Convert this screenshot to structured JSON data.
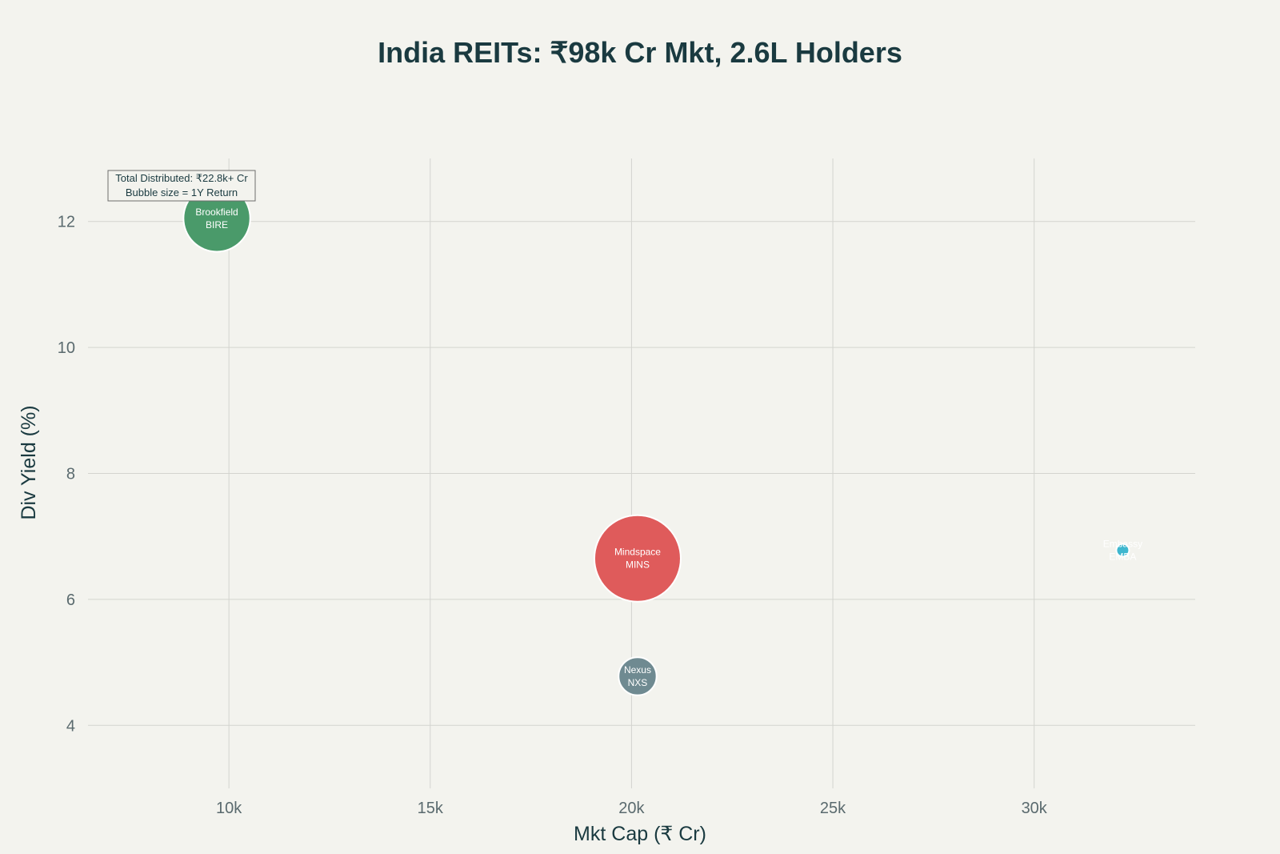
{
  "chart_data": {
    "type": "scatter",
    "title": "India REITs: ₹98k Cr Mkt, 2.6L Holders",
    "xlabel": "Mkt Cap (₹ Cr)",
    "ylabel": "Div Yield (%)",
    "xlim": [
      6500,
      34000
    ],
    "ylim": [
      3,
      13
    ],
    "x_ticks": [
      10000,
      15000,
      20000,
      25000,
      30000
    ],
    "x_tick_labels": [
      "10k",
      "15k",
      "20k",
      "25k",
      "30k"
    ],
    "y_ticks": [
      4,
      6,
      8,
      10,
      12
    ],
    "y_tick_labels": [
      "4",
      "6",
      "8",
      "10",
      "12"
    ],
    "grid": true,
    "bubble_size_meaning": "1Y Return",
    "points": [
      {
        "name": "Brookfield",
        "ticker": "BIRE",
        "x": 9700,
        "y": 12.05,
        "size": 3.4,
        "color": "#4a9a6a"
      },
      {
        "name": "Mindspace",
        "ticker": "MINS",
        "x": 20150,
        "y": 6.65,
        "size": 5.7,
        "color": "#df5b5b"
      },
      {
        "name": "Nexus",
        "ticker": "NXS",
        "x": 20150,
        "y": 4.78,
        "size": 1.1,
        "color": "#6f8a91"
      },
      {
        "name": "Embassy",
        "ticker": "EMBA",
        "x": 32200,
        "y": 6.78,
        "size": 0.04,
        "color": "#3fb7cf"
      }
    ],
    "annotation": {
      "line1": "Total Distributed: ₹22.8k+ Cr",
      "line2": "Bubble size = 1Y Return"
    }
  }
}
